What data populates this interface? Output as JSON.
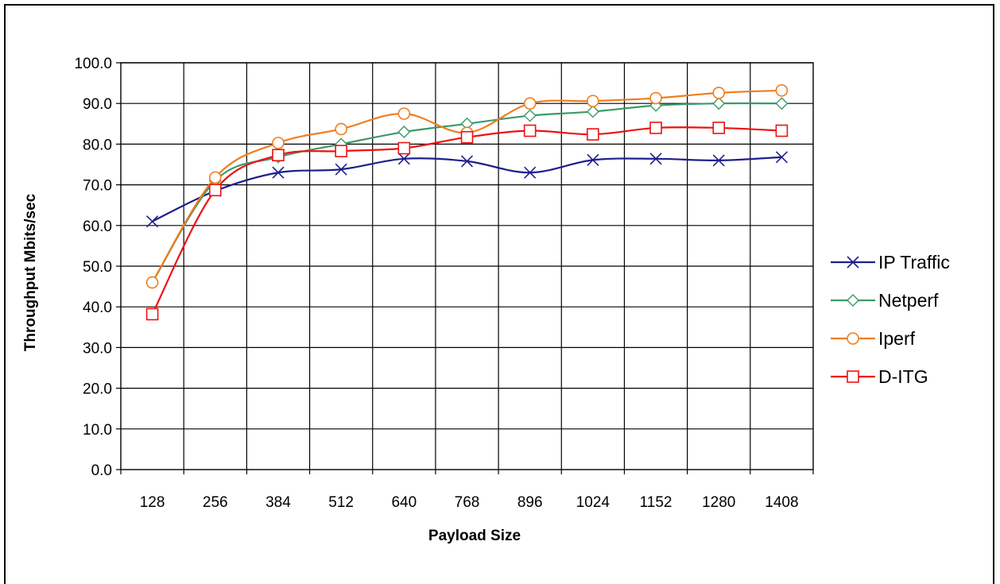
{
  "chart_data": {
    "type": "line",
    "title": "",
    "xlabel": "Payload Size",
    "ylabel": "Throughput Mbits/sec",
    "categories": [
      "128",
      "256",
      "384",
      "512",
      "640",
      "768",
      "896",
      "1024",
      "1152",
      "1280",
      "1408"
    ],
    "ylim": [
      0,
      100
    ],
    "ytick_step": 10,
    "ytick_labels": [
      "0.0",
      "10.0",
      "20.0",
      "30.0",
      "40.0",
      "50.0",
      "60.0",
      "70.0",
      "80.0",
      "90.0",
      "100.0"
    ],
    "grid": true,
    "legend_position": "right",
    "series": [
      {
        "name": "IP Traffic",
        "color": "#1f1f8c",
        "marker": "x",
        "values": [
          61.0,
          68.5,
          73.0,
          73.8,
          76.4,
          75.8,
          73.0,
          76.1,
          76.4,
          76.0,
          76.8
        ]
      },
      {
        "name": "Netperf",
        "color": "#3a9a6a",
        "marker": "diamond",
        "values": [
          46.0,
          71.0,
          76.8,
          80.0,
          83.0,
          85.0,
          87.0,
          88.0,
          89.5,
          90.0,
          90.0
        ]
      },
      {
        "name": "Iperf",
        "color": "#f07d1e",
        "marker": "circle",
        "values": [
          46.0,
          71.8,
          80.3,
          83.7,
          87.5,
          82.8,
          90.0,
          90.6,
          91.3,
          92.6,
          93.2
        ]
      },
      {
        "name": "D-ITG",
        "color": "#ee1111",
        "marker": "square",
        "values": [
          38.2,
          68.7,
          77.3,
          78.3,
          79.0,
          81.7,
          83.3,
          82.4,
          84.0,
          84.0,
          83.3
        ]
      }
    ]
  }
}
